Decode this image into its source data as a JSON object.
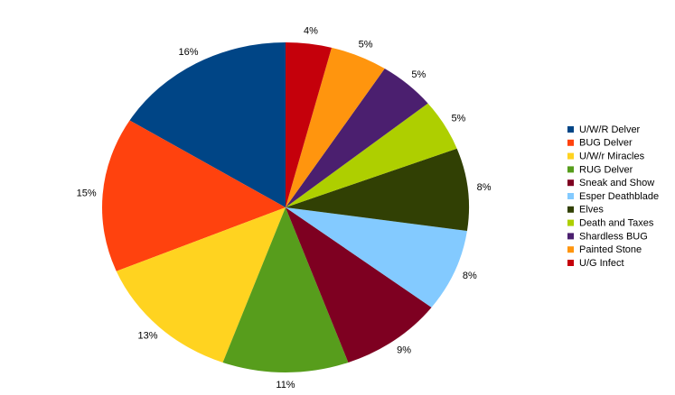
{
  "chart_data": {
    "type": "pie",
    "categories": [
      "U/W/R Delver",
      "BUG Delver",
      "U/W/r Miracles",
      "RUG Delver",
      "Sneak and Show",
      "Esper Deathblade",
      "Elves",
      "Death and Taxes",
      "Shardless BUG",
      "Painted Stone",
      "U/G Infect"
    ],
    "values": [
      16,
      15,
      13,
      11,
      9,
      8,
      8,
      5,
      5,
      5,
      4
    ],
    "value_labels": [
      "16%",
      "15%",
      "13%",
      "11%",
      "9%",
      "8%",
      "8%",
      "5%",
      "5%",
      "5%",
      "4%"
    ],
    "colors": [
      "#004586",
      "#ff420e",
      "#ffd320",
      "#579d1c",
      "#7e0021",
      "#83caff",
      "#314004",
      "#aecf00",
      "#4b1f6f",
      "#ff950e",
      "#c5000b"
    ],
    "legend": "right"
  }
}
